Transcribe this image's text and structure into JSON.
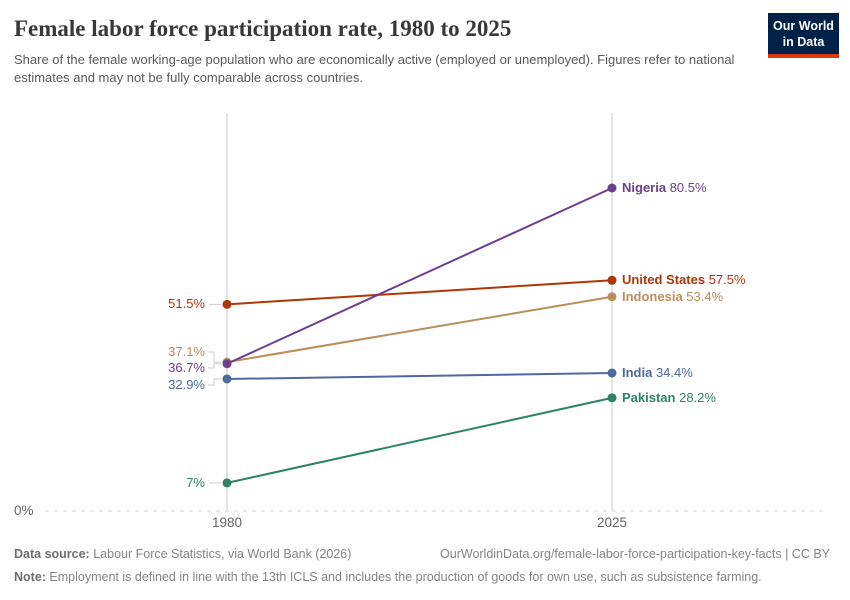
{
  "header": {
    "title": "Female labor force participation rate, 1980 to 2025",
    "subtitle": "Share of the female working-age population who are economically active (employed or unemployed). Figures refer to national estimates and may not be fully comparable across countries.",
    "logo": {
      "line1": "Our World",
      "line2": "in Data"
    }
  },
  "chart_data": {
    "type": "line",
    "variant": "slope-chart",
    "x": [
      1980,
      2025
    ],
    "x_labels": [
      "1980",
      "2025"
    ],
    "ylim": [
      0,
      99
    ],
    "y_baseline_label": "0%",
    "grid": "dotted baseline at 0% only",
    "legend_position": "direct-labels-right",
    "series": [
      {
        "name": "United States",
        "color": "#B13507",
        "values": [
          51.5,
          57.5
        ],
        "start_label": "51.5%",
        "end_label": "57.5%"
      },
      {
        "name": "Indonesia",
        "color": "#BC8E5A",
        "values": [
          37.1,
          53.4
        ],
        "start_label": "37.1%",
        "end_label": "53.4%"
      },
      {
        "name": "Nigeria",
        "color": "#6D3E91",
        "values": [
          36.7,
          80.5
        ],
        "start_label": "36.7%",
        "end_label": "80.5%"
      },
      {
        "name": "India",
        "color": "#4C6A9C",
        "values": [
          32.9,
          34.4
        ],
        "start_label": "32.9%",
        "end_label": "34.4%"
      },
      {
        "name": "Pakistan",
        "color": "#2C8465",
        "values": [
          7,
          28.2
        ],
        "start_label": "7%",
        "end_label": "28.2%"
      }
    ],
    "layout": {
      "start_label_y_overrides": {
        "Indonesia": 352,
        "Nigeria": 368,
        "India": 385
      }
    }
  },
  "footer": {
    "source_label": "Data source:",
    "source_text": " Labour Force Statistics, via World Bank (2026)",
    "link_text": "OurWorldinData.org/female-labor-force-participation-key-facts | CC BY",
    "note_label": "Note:",
    "note_text": " Employment is defined in line with the 13th ICLS and includes the production of goods for own use, such as subsistence farming."
  }
}
